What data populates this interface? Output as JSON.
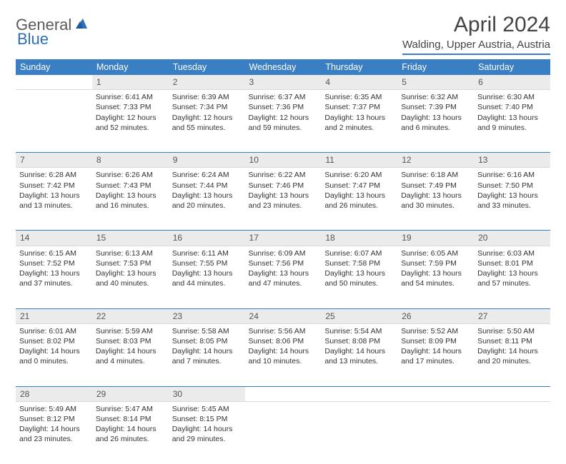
{
  "logo": {
    "part1": "General",
    "part2": "Blue"
  },
  "title": "April 2024",
  "location": "Walding, Upper Austria, Austria",
  "colors": {
    "header_bg": "#3a7fc4",
    "header_text": "#ffffff",
    "daynum_bg": "#ebebeb",
    "divider": "#3a7fc4",
    "logo_gray": "#5a5a5a",
    "logo_blue": "#2c6fb5",
    "body_text": "#333333"
  },
  "typography": {
    "title_fontsize": 30,
    "location_fontsize": 15,
    "header_fontsize": 12.5,
    "cell_fontsize": 10.5,
    "daynum_fontsize": 12
  },
  "weekdays": [
    "Sunday",
    "Monday",
    "Tuesday",
    "Wednesday",
    "Thursday",
    "Friday",
    "Saturday"
  ],
  "weeks": [
    {
      "nums": [
        "",
        "1",
        "2",
        "3",
        "4",
        "5",
        "6"
      ],
      "cells": [
        {
          "empty": true
        },
        {
          "sunrise": "Sunrise: 6:41 AM",
          "sunset": "Sunset: 7:33 PM",
          "daylight": "Daylight: 12 hours and 52 minutes."
        },
        {
          "sunrise": "Sunrise: 6:39 AM",
          "sunset": "Sunset: 7:34 PM",
          "daylight": "Daylight: 12 hours and 55 minutes."
        },
        {
          "sunrise": "Sunrise: 6:37 AM",
          "sunset": "Sunset: 7:36 PM",
          "daylight": "Daylight: 12 hours and 59 minutes."
        },
        {
          "sunrise": "Sunrise: 6:35 AM",
          "sunset": "Sunset: 7:37 PM",
          "daylight": "Daylight: 13 hours and 2 minutes."
        },
        {
          "sunrise": "Sunrise: 6:32 AM",
          "sunset": "Sunset: 7:39 PM",
          "daylight": "Daylight: 13 hours and 6 minutes."
        },
        {
          "sunrise": "Sunrise: 6:30 AM",
          "sunset": "Sunset: 7:40 PM",
          "daylight": "Daylight: 13 hours and 9 minutes."
        }
      ]
    },
    {
      "nums": [
        "7",
        "8",
        "9",
        "10",
        "11",
        "12",
        "13"
      ],
      "cells": [
        {
          "sunrise": "Sunrise: 6:28 AM",
          "sunset": "Sunset: 7:42 PM",
          "daylight": "Daylight: 13 hours and 13 minutes."
        },
        {
          "sunrise": "Sunrise: 6:26 AM",
          "sunset": "Sunset: 7:43 PM",
          "daylight": "Daylight: 13 hours and 16 minutes."
        },
        {
          "sunrise": "Sunrise: 6:24 AM",
          "sunset": "Sunset: 7:44 PM",
          "daylight": "Daylight: 13 hours and 20 minutes."
        },
        {
          "sunrise": "Sunrise: 6:22 AM",
          "sunset": "Sunset: 7:46 PM",
          "daylight": "Daylight: 13 hours and 23 minutes."
        },
        {
          "sunrise": "Sunrise: 6:20 AM",
          "sunset": "Sunset: 7:47 PM",
          "daylight": "Daylight: 13 hours and 26 minutes."
        },
        {
          "sunrise": "Sunrise: 6:18 AM",
          "sunset": "Sunset: 7:49 PM",
          "daylight": "Daylight: 13 hours and 30 minutes."
        },
        {
          "sunrise": "Sunrise: 6:16 AM",
          "sunset": "Sunset: 7:50 PM",
          "daylight": "Daylight: 13 hours and 33 minutes."
        }
      ]
    },
    {
      "nums": [
        "14",
        "15",
        "16",
        "17",
        "18",
        "19",
        "20"
      ],
      "cells": [
        {
          "sunrise": "Sunrise: 6:15 AM",
          "sunset": "Sunset: 7:52 PM",
          "daylight": "Daylight: 13 hours and 37 minutes."
        },
        {
          "sunrise": "Sunrise: 6:13 AM",
          "sunset": "Sunset: 7:53 PM",
          "daylight": "Daylight: 13 hours and 40 minutes."
        },
        {
          "sunrise": "Sunrise: 6:11 AM",
          "sunset": "Sunset: 7:55 PM",
          "daylight": "Daylight: 13 hours and 44 minutes."
        },
        {
          "sunrise": "Sunrise: 6:09 AM",
          "sunset": "Sunset: 7:56 PM",
          "daylight": "Daylight: 13 hours and 47 minutes."
        },
        {
          "sunrise": "Sunrise: 6:07 AM",
          "sunset": "Sunset: 7:58 PM",
          "daylight": "Daylight: 13 hours and 50 minutes."
        },
        {
          "sunrise": "Sunrise: 6:05 AM",
          "sunset": "Sunset: 7:59 PM",
          "daylight": "Daylight: 13 hours and 54 minutes."
        },
        {
          "sunrise": "Sunrise: 6:03 AM",
          "sunset": "Sunset: 8:01 PM",
          "daylight": "Daylight: 13 hours and 57 minutes."
        }
      ]
    },
    {
      "nums": [
        "21",
        "22",
        "23",
        "24",
        "25",
        "26",
        "27"
      ],
      "cells": [
        {
          "sunrise": "Sunrise: 6:01 AM",
          "sunset": "Sunset: 8:02 PM",
          "daylight": "Daylight: 14 hours and 0 minutes."
        },
        {
          "sunrise": "Sunrise: 5:59 AM",
          "sunset": "Sunset: 8:03 PM",
          "daylight": "Daylight: 14 hours and 4 minutes."
        },
        {
          "sunrise": "Sunrise: 5:58 AM",
          "sunset": "Sunset: 8:05 PM",
          "daylight": "Daylight: 14 hours and 7 minutes."
        },
        {
          "sunrise": "Sunrise: 5:56 AM",
          "sunset": "Sunset: 8:06 PM",
          "daylight": "Daylight: 14 hours and 10 minutes."
        },
        {
          "sunrise": "Sunrise: 5:54 AM",
          "sunset": "Sunset: 8:08 PM",
          "daylight": "Daylight: 14 hours and 13 minutes."
        },
        {
          "sunrise": "Sunrise: 5:52 AM",
          "sunset": "Sunset: 8:09 PM",
          "daylight": "Daylight: 14 hours and 17 minutes."
        },
        {
          "sunrise": "Sunrise: 5:50 AM",
          "sunset": "Sunset: 8:11 PM",
          "daylight": "Daylight: 14 hours and 20 minutes."
        }
      ]
    },
    {
      "nums": [
        "28",
        "29",
        "30",
        "",
        "",
        "",
        ""
      ],
      "cells": [
        {
          "sunrise": "Sunrise: 5:49 AM",
          "sunset": "Sunset: 8:12 PM",
          "daylight": "Daylight: 14 hours and 23 minutes."
        },
        {
          "sunrise": "Sunrise: 5:47 AM",
          "sunset": "Sunset: 8:14 PM",
          "daylight": "Daylight: 14 hours and 26 minutes."
        },
        {
          "sunrise": "Sunrise: 5:45 AM",
          "sunset": "Sunset: 8:15 PM",
          "daylight": "Daylight: 14 hours and 29 minutes."
        },
        {
          "empty": true
        },
        {
          "empty": true
        },
        {
          "empty": true
        },
        {
          "empty": true
        }
      ]
    }
  ]
}
